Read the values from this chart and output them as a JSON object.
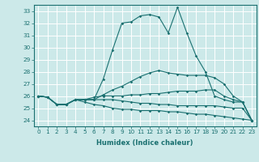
{
  "xlabel": "Humidex (Indice chaleur)",
  "bg_color": "#cce9e9",
  "line_color": "#1a7070",
  "grid_color": "#ffffff",
  "xlim": [
    -0.5,
    23.5
  ],
  "ylim": [
    23.5,
    33.5
  ],
  "xticks": [
    0,
    1,
    2,
    3,
    4,
    5,
    6,
    7,
    8,
    9,
    10,
    11,
    12,
    13,
    14,
    15,
    16,
    17,
    18,
    19,
    20,
    21,
    22,
    23
  ],
  "yticks": [
    24,
    25,
    26,
    27,
    28,
    29,
    30,
    31,
    32,
    33
  ],
  "line1": [
    26.0,
    25.9,
    25.3,
    25.3,
    25.7,
    25.7,
    25.7,
    27.4,
    29.8,
    32.0,
    32.1,
    32.6,
    32.7,
    32.5,
    31.2,
    33.3,
    31.2,
    29.3,
    28.0,
    26.0,
    25.7,
    25.5,
    25.5,
    24.0
  ],
  "line2": [
    26.0,
    25.9,
    25.3,
    25.3,
    25.7,
    25.7,
    25.7,
    26.1,
    26.5,
    26.8,
    27.2,
    27.6,
    27.9,
    28.1,
    27.9,
    27.8,
    27.7,
    27.7,
    27.7,
    27.5,
    27.0,
    26.0,
    25.5,
    24.0
  ],
  "line3": [
    26.0,
    25.9,
    25.3,
    25.3,
    25.7,
    25.7,
    25.9,
    26.0,
    26.0,
    26.0,
    26.1,
    26.1,
    26.2,
    26.2,
    26.3,
    26.4,
    26.4,
    26.4,
    26.5,
    26.5,
    26.0,
    25.7,
    25.5,
    24.0
  ],
  "line4": [
    26.0,
    25.9,
    25.3,
    25.3,
    25.7,
    25.7,
    25.7,
    25.7,
    25.7,
    25.6,
    25.5,
    25.4,
    25.4,
    25.3,
    25.3,
    25.2,
    25.2,
    25.2,
    25.2,
    25.2,
    25.1,
    25.0,
    25.0,
    24.0
  ],
  "line5": [
    26.0,
    25.9,
    25.3,
    25.3,
    25.7,
    25.5,
    25.3,
    25.2,
    25.0,
    24.9,
    24.9,
    24.8,
    24.8,
    24.8,
    24.7,
    24.7,
    24.6,
    24.5,
    24.5,
    24.4,
    24.3,
    24.2,
    24.1,
    24.0
  ]
}
